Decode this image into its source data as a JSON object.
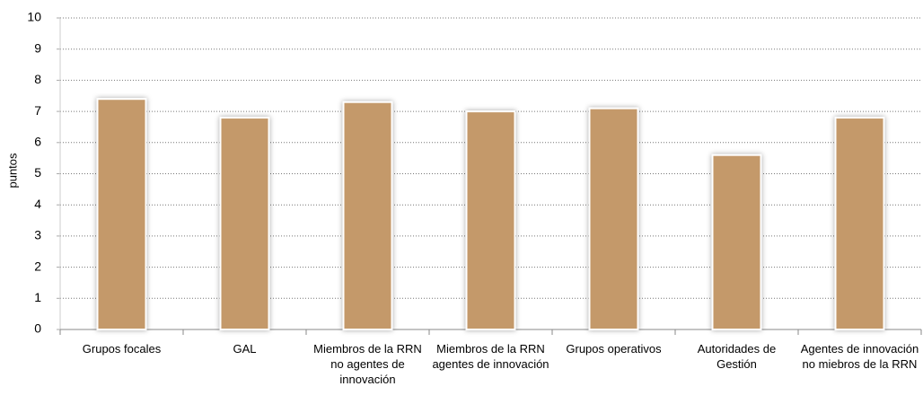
{
  "chart_data": {
    "type": "bar",
    "y_label": "puntos",
    "categories": [
      "Grupos focales",
      "GAL",
      "Miembros de la RRN no agentes de innovación",
      "Miembros de la RRN agentes de innovación",
      "Grupos operativos",
      "Autoridades de Gestión",
      "Agentes de innovación no miebros de la RRN"
    ],
    "values": [
      7.4,
      6.8,
      7.3,
      7.0,
      7.1,
      5.6,
      6.8
    ],
    "color": "#c4996b",
    "ylim": [
      0,
      10
    ],
    "yticks": [
      0,
      1,
      2,
      3,
      4,
      5,
      6,
      7,
      8,
      9,
      10
    ],
    "grid": true
  }
}
